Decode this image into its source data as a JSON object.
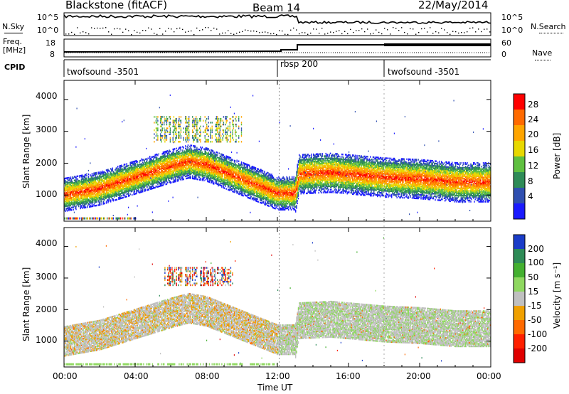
{
  "header": {
    "station": "Blackstone (fitACF)",
    "beam": "Beam 14",
    "date": "22/May/2014"
  },
  "side_labels": {
    "nsky": "N.Sky",
    "freq_line1": "Freq.",
    "freq_line2": "[MHz]",
    "cpid": "CPID",
    "nsearch": "N.Search",
    "nave": "Nave"
  },
  "noise_panel": {
    "left_ticks": [
      "10^5",
      "10^0"
    ],
    "right_ticks": [
      "10^5",
      "10^0"
    ]
  },
  "freq_panel": {
    "left_ticks": [
      "18",
      "8"
    ],
    "right_ticks": [
      "60",
      "0"
    ]
  },
  "cpid_segments": [
    {
      "label": "twofsound -3501",
      "start_hour": 0
    },
    {
      "label": "rbsp 200",
      "start_hour": 12.1
    },
    {
      "label": "twofsound -3501",
      "start_hour": 18.0
    }
  ],
  "axis": {
    "xlabel": "Time UT",
    "x_ticks": [
      "00:00",
      "04:00",
      "08:00",
      "12:00",
      "16:00",
      "20:00",
      "00:00"
    ],
    "ylabel": "Slant Range [km]",
    "y_ticks": [
      "4000",
      "3000",
      "2000",
      "1000"
    ]
  },
  "power_colorbar": {
    "label": "Power [dB]",
    "ticks": [
      "28",
      "24",
      "20",
      "16",
      "12",
      "8",
      "4"
    ],
    "colors": [
      "#ff0000",
      "#ff6a00",
      "#ffa500",
      "#e8d800",
      "#5fc040",
      "#2e8b57",
      "#2f4fb0",
      "#1a1aff"
    ]
  },
  "velocity_colorbar": {
    "label": "Velocity [m s⁻¹]",
    "ticks": [
      "200",
      "100",
      "50",
      "15",
      "-15",
      "-50",
      "-100",
      "-200"
    ],
    "colors": [
      "#1a3cc8",
      "#2e8b57",
      "#44b030",
      "#8fd860",
      "#c0c0c0",
      "#f0a000",
      "#ff6a00",
      "#ff2000",
      "#e00000"
    ]
  },
  "chart_data": {
    "type": "heatmap",
    "title": "Blackstone (fitACF)",
    "xlabel": "Time UT",
    "ylabel": "Slant Range [km]",
    "xlim": [
      0,
      24
    ],
    "ylim": [
      180,
      4600
    ],
    "x_units": "hours UT",
    "main_band": [
      {
        "t": 0,
        "range": 1000
      },
      {
        "t": 2,
        "range": 1200
      },
      {
        "t": 4,
        "range": 1550
      },
      {
        "t": 6,
        "range": 1900
      },
      {
        "t": 7,
        "range": 2050
      },
      {
        "t": 8,
        "range": 1950
      },
      {
        "t": 10,
        "range": 1500
      },
      {
        "t": 12,
        "range": 1050
      },
      {
        "t": 13,
        "range": 1050
      },
      {
        "t": 13.2,
        "range": 1650
      },
      {
        "t": 15,
        "range": 1700
      },
      {
        "t": 16,
        "range": 1650
      },
      {
        "t": 18,
        "range": 1550
      },
      {
        "t": 20,
        "range": 1500
      },
      {
        "t": 22,
        "range": 1400
      },
      {
        "t": 24,
        "range": 1400
      }
    ]
  }
}
